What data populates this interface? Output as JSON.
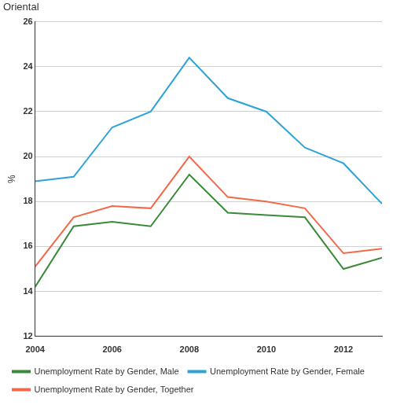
{
  "chart_data": {
    "type": "line",
    "title": "Oriental",
    "y_label": "%",
    "x": [
      2004,
      2005,
      2006,
      2007,
      2008,
      2009,
      2010,
      2011,
      2012,
      2013
    ],
    "series": [
      {
        "name": "Unemployment Rate by Gender, Male",
        "color": "#3a8a3a",
        "values": [
          14.2,
          16.9,
          17.1,
          16.9,
          19.2,
          17.5,
          17.4,
          17.3,
          15.0,
          15.5
        ]
      },
      {
        "name": "Unemployment Rate by Gender, Female",
        "color": "#2ea3d8",
        "values": [
          18.9,
          19.1,
          21.3,
          22.0,
          24.4,
          22.6,
          22.0,
          20.4,
          19.7,
          17.9
        ]
      },
      {
        "name": "Unemployment Rate by Gender, Together",
        "color": "#f2694a",
        "values": [
          15.1,
          17.3,
          17.8,
          17.7,
          20.0,
          18.2,
          18.0,
          17.7,
          15.7,
          15.9
        ]
      }
    ],
    "xlim": [
      2004,
      2013
    ],
    "xticks": [
      2004,
      2006,
      2008,
      2010,
      2012
    ],
    "ylim": [
      12,
      26
    ],
    "yticks": [
      12,
      14,
      16,
      18,
      20,
      22,
      24,
      26
    ],
    "grid": true,
    "legend": "bottom"
  }
}
